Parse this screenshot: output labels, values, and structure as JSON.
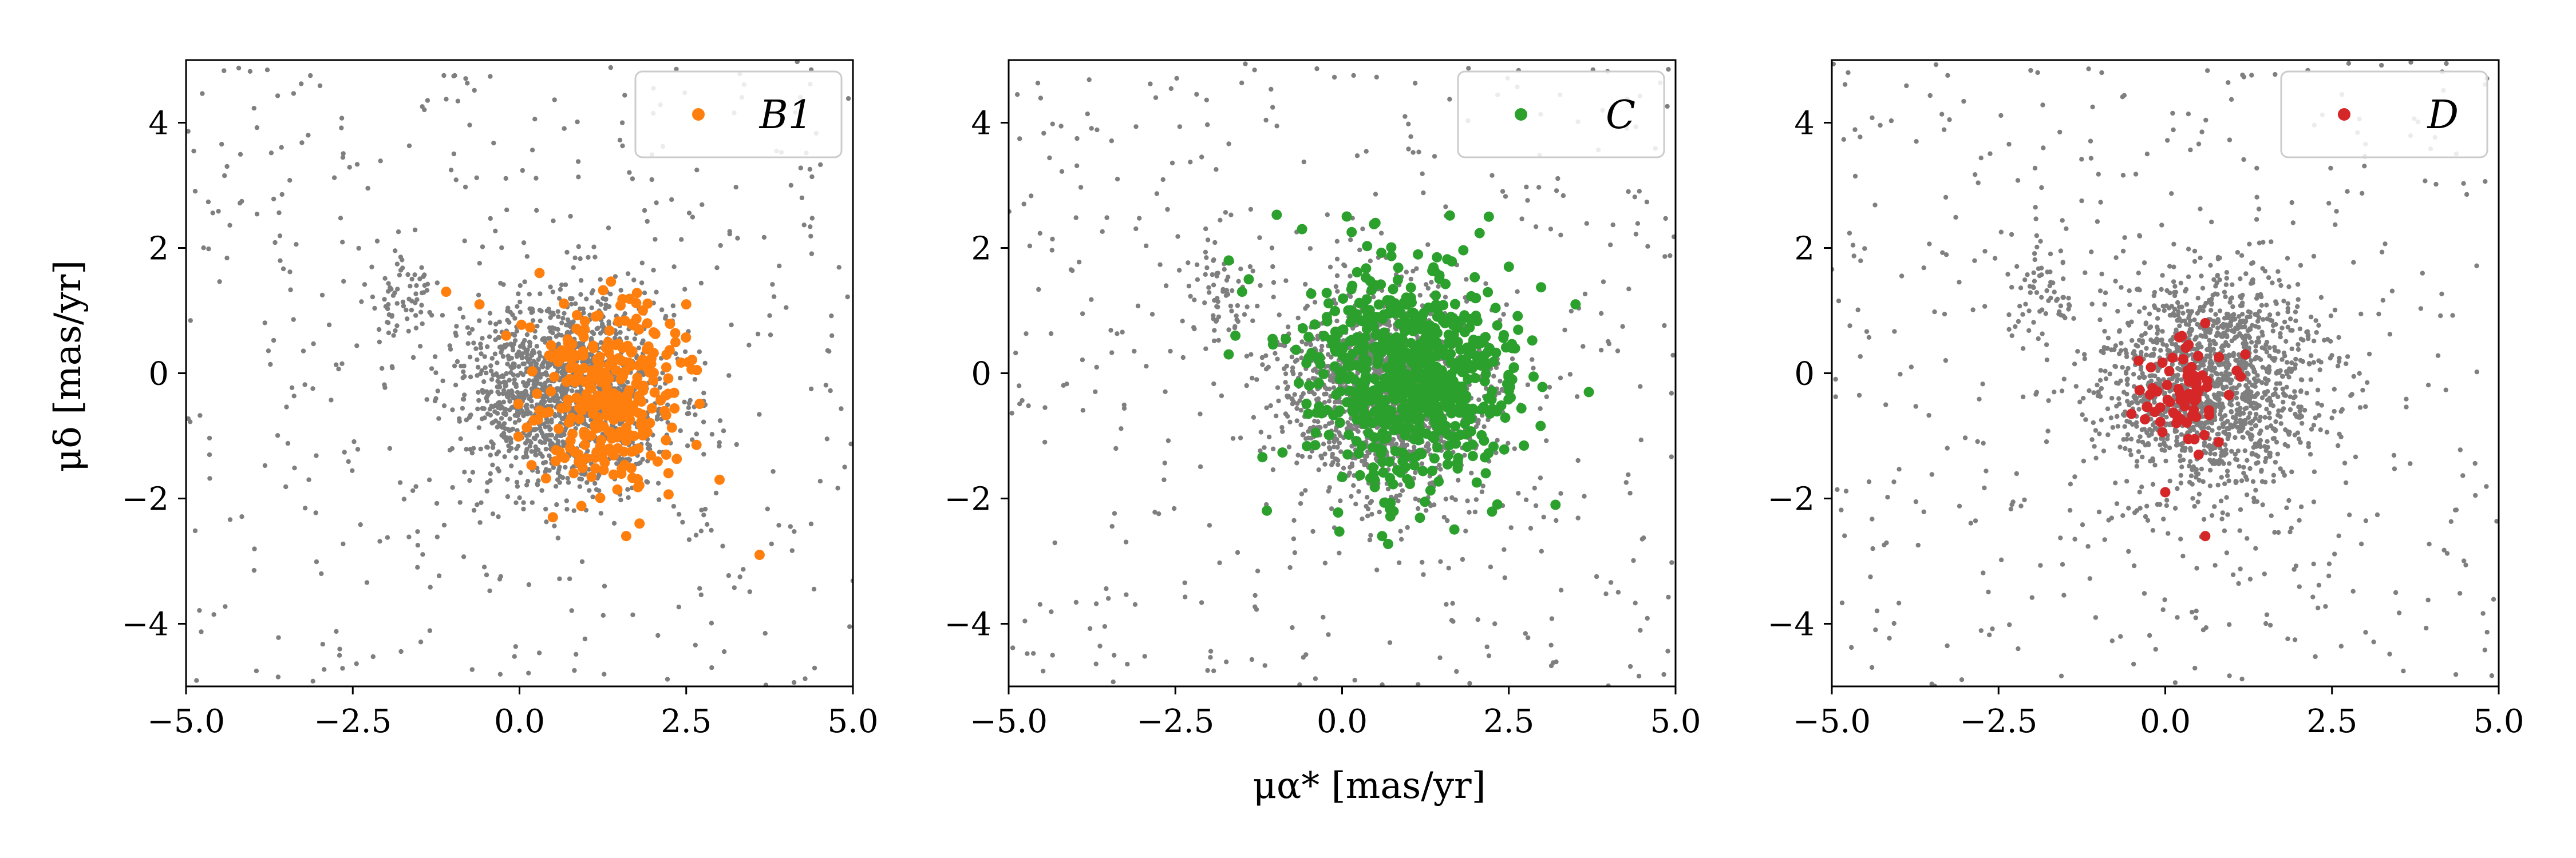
{
  "figure": {
    "shared_xlabel": "μα* [mas/yr]",
    "shared_ylabel": "μδ [mas/yr]"
  },
  "colors": {
    "background_points": "#7f7f7f",
    "B1": "#ff7f0e",
    "C": "#2ca02c",
    "D": "#d62728"
  },
  "chart_data": [
    {
      "type": "scatter",
      "panel": "left",
      "xlim": [
        -5.0,
        5.0
      ],
      "ylim": [
        -5.0,
        5.0
      ],
      "xticks": [
        "−5.0",
        "−2.5",
        "0.0",
        "2.5",
        "5.0"
      ],
      "yticks": [
        "−4",
        "−2",
        "0",
        "2",
        "4"
      ],
      "ylabel": "μδ [mas/yr]",
      "legend_position": "top-right",
      "series": [
        {
          "name": "",
          "role": "background field stars",
          "color": "#7f7f7f",
          "distribution": {
            "cluster_center": [
              0.7,
              -0.3
            ],
            "cluster_sd": [
              0.75,
              0.75
            ],
            "cluster_count": 1500,
            "clump_center": [
              -1.8,
              1.2
            ],
            "clump_count": 60,
            "halo_count": 420,
            "range": [
              -5,
              5
            ]
          }
        },
        {
          "name": "B1",
          "color": "#ff7f0e",
          "distribution": {
            "center": [
              1.3,
              -0.4
            ],
            "sd": [
              0.5,
              0.75
            ],
            "count": 300
          },
          "points": [
            [
              -1.1,
              1.3
            ],
            [
              -0.6,
              1.1
            ],
            [
              -0.2,
              0.6
            ],
            [
              2.5,
              1.1
            ],
            [
              3.0,
              -1.7
            ],
            [
              3.6,
              -2.9
            ],
            [
              0.5,
              -2.3
            ],
            [
              1.6,
              -2.6
            ],
            [
              1.8,
              -2.4
            ],
            [
              2.2,
              -1.3
            ],
            [
              0.3,
              1.6
            ]
          ]
        }
      ]
    },
    {
      "type": "scatter",
      "panel": "middle",
      "xlim": [
        -5.0,
        5.0
      ],
      "ylim": [
        -5.0,
        5.0
      ],
      "xticks": [
        "−5.0",
        "−2.5",
        "0.0",
        "2.5",
        "5.0"
      ],
      "yticks": [
        "−4",
        "−2",
        "0",
        "2",
        "4"
      ],
      "xlabel": "μα* [mas/yr]",
      "legend_position": "top-right",
      "series": [
        {
          "name": "",
          "role": "background field stars",
          "color": "#7f7f7f",
          "distribution": {
            "cluster_center": [
              0.7,
              -0.3
            ],
            "cluster_sd": [
              0.75,
              0.75
            ],
            "cluster_count": 1500,
            "clump_center": [
              -1.8,
              1.2
            ],
            "clump_count": 60,
            "halo_count": 420,
            "range": [
              -5,
              5
            ]
          }
        },
        {
          "name": "C",
          "color": "#2ca02c",
          "distribution": {
            "center": [
              1.0,
              0.0
            ],
            "sd": [
              0.75,
              0.85
            ],
            "count": 700
          },
          "points": [
            [
              -1.7,
              1.8
            ],
            [
              -1.5,
              1.3
            ],
            [
              -1.6,
              0.6
            ],
            [
              -1.4,
              1.5
            ],
            [
              -1.7,
              0.3
            ],
            [
              2.2,
              2.5
            ],
            [
              2.5,
              1.7
            ],
            [
              3.5,
              1.1
            ],
            [
              3.7,
              -0.3
            ],
            [
              3.2,
              -2.1
            ],
            [
              -0.6,
              2.3
            ],
            [
              0.5,
              2.4
            ],
            [
              0.6,
              -2.6
            ]
          ]
        }
      ]
    },
    {
      "type": "scatter",
      "panel": "right",
      "xlim": [
        -5.0,
        5.0
      ],
      "ylim": [
        -5.0,
        5.0
      ],
      "xticks": [
        "−5.0",
        "−2.5",
        "0.0",
        "2.5",
        "5.0"
      ],
      "yticks": [
        "−4",
        "−2",
        "0",
        "2",
        "4"
      ],
      "legend_position": "top-right",
      "series": [
        {
          "name": "",
          "role": "background field stars",
          "color": "#7f7f7f",
          "distribution": {
            "cluster_center": [
              0.7,
              -0.2
            ],
            "cluster_sd": [
              0.8,
              0.85
            ],
            "cluster_count": 1500,
            "clump_center": [
              -1.8,
              1.2
            ],
            "clump_count": 60,
            "halo_count": 420,
            "range": [
              -5,
              5
            ]
          }
        },
        {
          "name": "D",
          "color": "#d62728",
          "distribution": {
            "center": [
              0.2,
              -0.3
            ],
            "sd": [
              0.35,
              0.35
            ],
            "count": 65
          },
          "points": [
            [
              0.0,
              -1.9
            ],
            [
              0.6,
              -2.6
            ],
            [
              0.6,
              0.8
            ],
            [
              1.2,
              0.3
            ],
            [
              -0.4,
              0.2
            ],
            [
              0.5,
              -1.3
            ],
            [
              0.8,
              -1.1
            ]
          ]
        }
      ]
    }
  ]
}
